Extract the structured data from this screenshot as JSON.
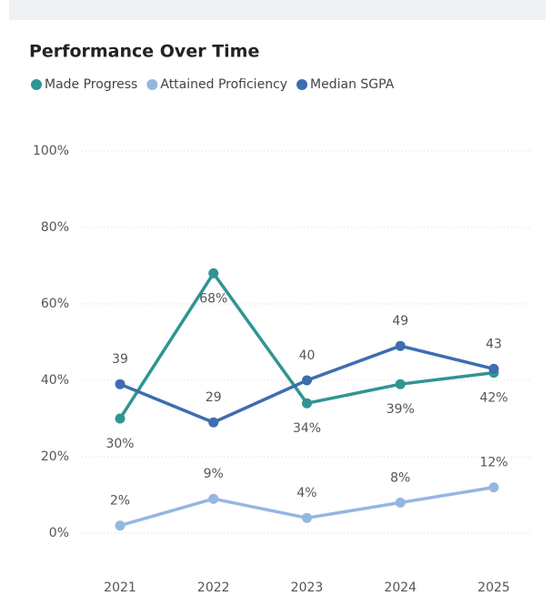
{
  "chart_data": {
    "type": "line",
    "title": "Performance Over Time",
    "categories": [
      "2021",
      "2022",
      "2023",
      "2024",
      "2025"
    ],
    "series": [
      {
        "name": "Made Progress",
        "color": "#2f9593",
        "values": [
          30,
          68,
          34,
          39,
          42
        ],
        "value_labels": [
          "30%",
          "68%",
          "34%",
          "39%",
          "42%"
        ]
      },
      {
        "name": "Attained Proficiency",
        "color": "#96b6e0",
        "values": [
          2,
          9,
          4,
          8,
          12
        ],
        "value_labels": [
          "2%",
          "9%",
          "4%",
          "8%",
          "12%"
        ]
      },
      {
        "name": "Median SGPA",
        "color": "#3e6db0",
        "values": [
          39,
          29,
          40,
          49,
          43
        ]
      }
    ],
    "ylim": [
      0,
      100
    ],
    "yticks": [
      {
        "value": 0,
        "label": "0%"
      },
      {
        "value": 20,
        "label": "20%"
      },
      {
        "value": 40,
        "label": "40%"
      },
      {
        "value": 60,
        "label": "60%"
      },
      {
        "value": 80,
        "label": "80%"
      },
      {
        "value": 100,
        "label": "100%"
      }
    ],
    "grid": true,
    "legend": "top-left"
  }
}
